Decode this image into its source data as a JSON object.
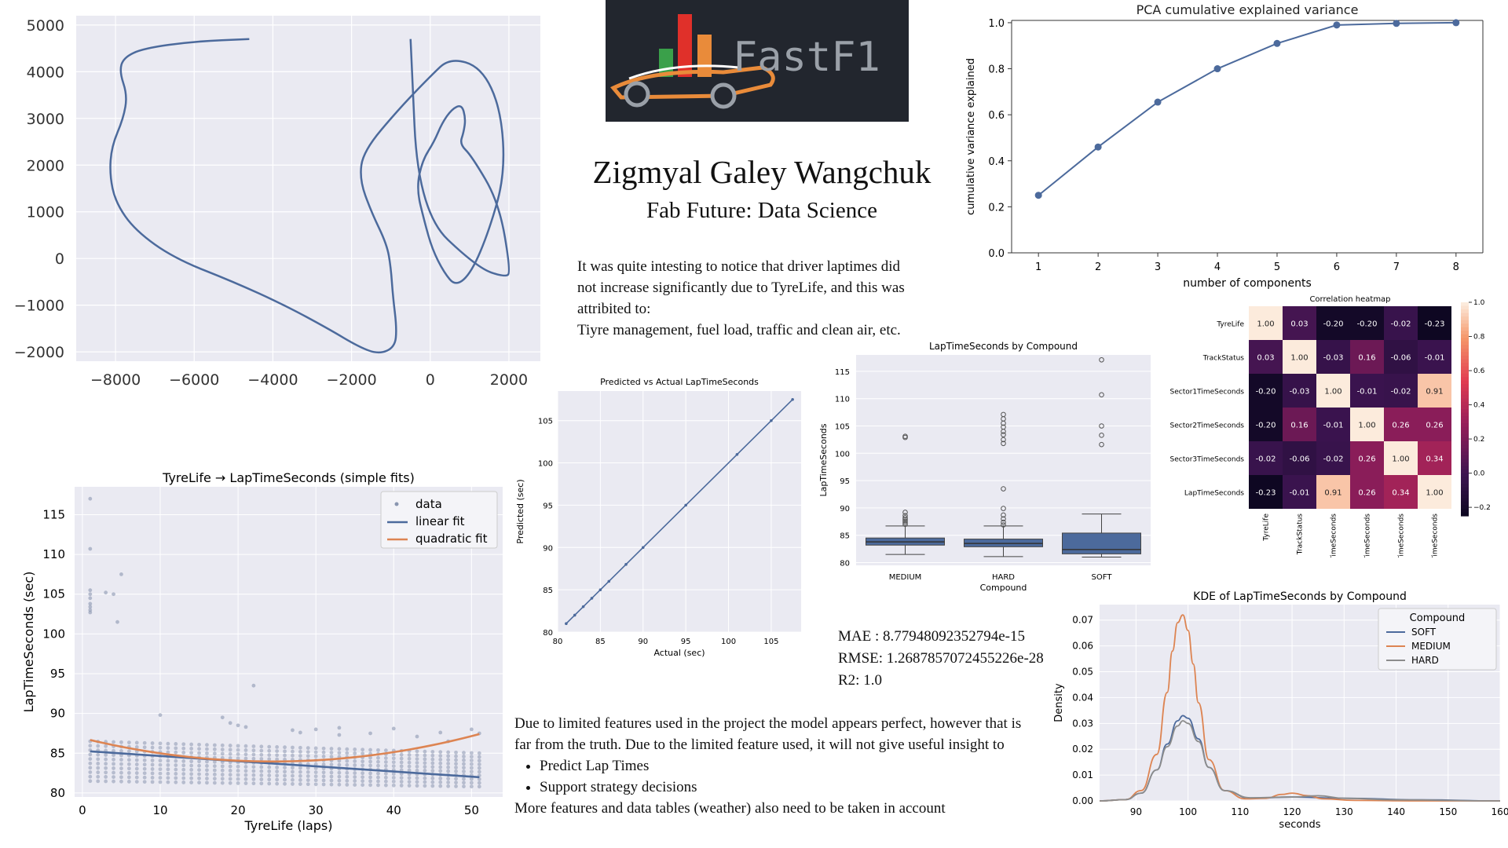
{
  "author": {
    "name": "Zigmyal Galey Wangchuk",
    "subtitle": "Fab Future: Data Science"
  },
  "logo": {
    "text": "FastF1"
  },
  "note": {
    "lines": [
      "It was quite intesting to notice that driver laptimes did",
      "not increase significantly due to TyreLife, and this was",
      "attribited to:",
      "Tiyre management, fuel load, traffic and clean air, etc."
    ]
  },
  "metrics": {
    "mae": "MAE : 8.77948092352794e-15",
    "rmse": "RMSE: 1.2687857072455226e-28",
    "r2": "R2: 1.0"
  },
  "conclusion": {
    "intro": "Due to limited features used in the project the model appears perfect, however that is far from the truth. Due to the limited feature used, it will not give useful insight to",
    "bullets": [
      "Predict Lap Times",
      "Support strategy decisions"
    ],
    "outro": "More features and data tables (weather) also need to be taken in account"
  },
  "colors": {
    "blue": "#4c6a9c",
    "orange": "#dd8452",
    "gray": "#8c8c8c",
    "panel_bg": "#eaeaf2"
  },
  "chart_data": [
    {
      "id": "track",
      "type": "line",
      "title": "",
      "xticks": [
        "−8000",
        "−6000",
        "−4000",
        "−2000",
        "0",
        "2000"
      ],
      "yticks": [
        "5000",
        "4000",
        "3000",
        "2000",
        "1000",
        "0",
        "−1000",
        "−2000"
      ],
      "xlim": [
        -9000,
        2800
      ],
      "ylim": [
        -2200,
        5200
      ],
      "x": [
        -4600,
        -6000,
        -7300,
        -7800,
        -7900,
        -7700,
        -7800,
        -8100,
        -8150,
        -8000,
        -7500,
        -6500,
        -5000,
        -3700,
        -2600,
        -1800,
        -1300,
        -900,
        -850,
        -950,
        -1000,
        -1100,
        -1500,
        -1800,
        -1700,
        -800,
        0,
        500,
        1300,
        1800,
        1900,
        1500,
        1050,
        650,
        350,
        50,
        -150,
        -350,
        -200,
        100,
        300,
        550,
        800,
        900,
        850,
        750,
        1050,
        1750,
        2050,
        1900,
        1200,
        -300,
        -500
      ],
      "y": [
        4700,
        4650,
        4500,
        4300,
        4000,
        3500,
        3000,
        2400,
        1800,
        1200,
        600,
        0,
        -500,
        -1000,
        -1500,
        -1900,
        -2050,
        -1900,
        -1500,
        -800,
        -200,
        300,
        1000,
        1700,
        2300,
        3200,
        3900,
        4300,
        4100,
        3200,
        1800,
        600,
        -300,
        -600,
        -300,
        200,
        800,
        1500,
        2100,
        2500,
        2900,
        3200,
        3300,
        3000,
        2700,
        2450,
        2200,
        1200,
        -300,
        -400,
        -200,
        1000,
        4700
      ]
    },
    {
      "id": "pca",
      "type": "line",
      "title": "PCA cumulative explained variance",
      "xlabel": "number of components",
      "ylabel": "cumulative variance explained",
      "x": [
        1,
        2,
        3,
        4,
        5,
        6,
        7,
        8
      ],
      "y": [
        0.25,
        0.46,
        0.655,
        0.8,
        0.91,
        0.99,
        0.997,
        1.0
      ],
      "xlim": [
        0.55,
        8.45
      ],
      "ylim": [
        0,
        1.01
      ],
      "xticks": [
        "1",
        "2",
        "3",
        "4",
        "5",
        "6",
        "7",
        "8"
      ],
      "yticks": [
        "0.0",
        "0.2",
        "0.4",
        "0.6",
        "0.8",
        "1.0"
      ]
    },
    {
      "id": "heatmap",
      "type": "heatmap",
      "title": "Correlation heatmap",
      "labels": [
        "TyreLife",
        "TrackStatus",
        "Sector1TimeSeconds",
        "Sector2TimeSeconds",
        "Sector3TimeSeconds",
        "LapTimeSeconds"
      ],
      "matrix": [
        [
          1.0,
          0.03,
          -0.2,
          -0.2,
          -0.02,
          -0.23
        ],
        [
          0.03,
          1.0,
          -0.03,
          0.16,
          -0.06,
          -0.01
        ],
        [
          -0.2,
          -0.03,
          1.0,
          -0.01,
          -0.02,
          0.91
        ],
        [
          -0.2,
          0.16,
          -0.01,
          1.0,
          0.26,
          0.26
        ],
        [
          -0.02,
          -0.06,
          -0.02,
          0.26,
          1.0,
          0.34
        ],
        [
          -0.23,
          -0.01,
          0.91,
          0.26,
          0.34,
          1.0
        ]
      ],
      "cells": [
        [
          "1.00",
          "0.03",
          "-0.20",
          "-0.20",
          "-0.02",
          "-0.23"
        ],
        [
          "0.03",
          "1.00",
          "-0.03",
          "0.16",
          "-0.06",
          "-0.01"
        ],
        [
          "-0.20",
          "-0.03",
          "1.00",
          "-0.01",
          "-0.02",
          "0.91"
        ],
        [
          "-0.20",
          "0.16",
          "-0.01",
          "1.00",
          "0.26",
          "0.26"
        ],
        [
          "-0.02",
          "-0.06",
          "-0.02",
          "0.26",
          "1.00",
          "0.34"
        ],
        [
          "-0.23",
          "-0.01",
          "0.91",
          "0.26",
          "0.34",
          "1.00"
        ]
      ],
      "colorbar_ticks": [
        "1.0",
        "0.8",
        "0.6",
        "0.4",
        "0.2",
        "0.0",
        "−0.2"
      ],
      "vmin": -0.25,
      "vmax": 1.0
    },
    {
      "id": "pred",
      "type": "scatter",
      "title": "Predicted vs Actual LapTimeSeconds",
      "xlabel": "Actual (sec)",
      "ylabel": "Predicted (sec)",
      "xlim": [
        80,
        108.5
      ],
      "ylim": [
        80,
        108.5
      ],
      "x": [
        81,
        82,
        83,
        84,
        85,
        86,
        88,
        90,
        95,
        101,
        105,
        107.5
      ],
      "y": [
        81,
        82,
        83,
        84,
        85,
        86,
        88,
        90,
        95,
        101,
        105,
        107.5
      ],
      "xticks": [
        "80",
        "85",
        "90",
        "95",
        "100",
        "105"
      ],
      "yticks": [
        "80",
        "85",
        "90",
        "95",
        "100",
        "105"
      ]
    },
    {
      "id": "box",
      "type": "bar",
      "title": "LapTimeSeconds by Compound",
      "xlabel": "Compound",
      "ylabel": "LapTimeSeconds",
      "categories": [
        "MEDIUM",
        "HARD",
        "SOFT"
      ],
      "ylim": [
        79.5,
        118
      ],
      "yticks": [
        "80",
        "85",
        "90",
        "95",
        "100",
        "105",
        "110",
        "115"
      ],
      "boxes": [
        {
          "whislo": 81.5,
          "q1": 83.2,
          "med": 83.8,
          "q3": 84.5,
          "whishi": 86.7,
          "fliers": [
            87.0,
            87.3,
            87.6,
            87.9,
            88.2,
            88.6,
            89.2,
            102.9,
            103.1
          ]
        },
        {
          "whislo": 81.1,
          "q1": 82.9,
          "med": 83.5,
          "q3": 84.3,
          "whishi": 86.7,
          "fliers": [
            86.9,
            87.4,
            88.0,
            88.7,
            89.9,
            93.5,
            101.8,
            102.5,
            103.4,
            104.0,
            104.8,
            105.5,
            106.3,
            107.1
          ]
        },
        {
          "whislo": 81.0,
          "q1": 81.6,
          "med": 82.4,
          "q3": 85.4,
          "whishi": 88.9,
          "fliers": [
            101.6,
            103.3,
            105.0,
            110.7,
            117.1
          ]
        }
      ]
    },
    {
      "id": "kde",
      "type": "line",
      "title": "KDE of LapTimeSeconds by Compound",
      "xlabel": "seconds",
      "ylabel": "Density",
      "legend_title": "Compound",
      "xlim": [
        83,
        160
      ],
      "ylim": [
        0,
        0.076
      ],
      "xticks": [
        "90",
        "100",
        "110",
        "120",
        "130",
        "140",
        "150",
        "160"
      ],
      "yticks": [
        "0.00",
        "0.01",
        "0.02",
        "0.03",
        "0.04",
        "0.05",
        "0.06",
        "0.07"
      ],
      "series": [
        {
          "name": "SOFT",
          "x": [
            83,
            88,
            91,
            94,
            96,
            98,
            99,
            100,
            102,
            104,
            107,
            112,
            120,
            130,
            145,
            160
          ],
          "y": [
            0,
            0.0005,
            0.003,
            0.012,
            0.022,
            0.031,
            0.033,
            0.032,
            0.024,
            0.013,
            0.004,
            0.001,
            0.0015,
            0.001,
            0.0004,
            0
          ]
        },
        {
          "name": "MEDIUM",
          "x": [
            83,
            88,
            91,
            94,
            96,
            97,
            98,
            99,
            100,
            101,
            102,
            104,
            107,
            111,
            115,
            118,
            120,
            123,
            126,
            132,
            145,
            160
          ],
          "y": [
            0,
            0.0005,
            0.004,
            0.018,
            0.042,
            0.058,
            0.069,
            0.072,
            0.066,
            0.053,
            0.038,
            0.016,
            0.004,
            0.0008,
            0.001,
            0.0025,
            0.003,
            0.002,
            0.0008,
            0.0002,
            0,
            0
          ]
        },
        {
          "name": "HARD",
          "x": [
            83,
            88,
            91,
            94,
            96,
            98,
            99,
            100,
            102,
            104,
            107,
            112,
            120,
            125,
            130,
            140,
            160
          ],
          "y": [
            0,
            0.0005,
            0.003,
            0.012,
            0.021,
            0.029,
            0.031,
            0.03,
            0.023,
            0.013,
            0.004,
            0.0012,
            0.0015,
            0.002,
            0.001,
            0.0004,
            0
          ]
        }
      ]
    },
    {
      "id": "tyre",
      "type": "scatter",
      "title": "TyreLife → LapTimeSeconds (simple fits)",
      "xlabel": "TyreLife (laps)",
      "ylabel": "LapTimeSeconds (sec)",
      "xlim": [
        -1,
        54
      ],
      "ylim": [
        79.5,
        118.5
      ],
      "xticks": [
        "0",
        "10",
        "20",
        "30",
        "40",
        "50"
      ],
      "yticks": [
        "80",
        "85",
        "90",
        "95",
        "100",
        "105",
        "110",
        "115"
      ],
      "legend": [
        "data",
        "linear fit",
        "quadratic fit"
      ],
      "outliers": [
        [
          1,
          117
        ],
        [
          1,
          110.7
        ],
        [
          1,
          105.5
        ],
        [
          1,
          105
        ],
        [
          1,
          104.5
        ],
        [
          1,
          103.8
        ],
        [
          1,
          103.4
        ],
        [
          1,
          103
        ],
        [
          1,
          102.7
        ],
        [
          3,
          105.2
        ],
        [
          4,
          105
        ],
        [
          4.5,
          101.5
        ],
        [
          5,
          107.5
        ],
        [
          10,
          89.8
        ],
        [
          18,
          89.5
        ],
        [
          19,
          88.8
        ],
        [
          20,
          88.5
        ],
        [
          21,
          88.3
        ],
        [
          22,
          93.5
        ],
        [
          27,
          87.9
        ],
        [
          28,
          87.6
        ],
        [
          30,
          88.0
        ],
        [
          33,
          88.2
        ],
        [
          33,
          87.3
        ],
        [
          37,
          87.5
        ],
        [
          40,
          88.1
        ],
        [
          43,
          87.1
        ],
        [
          46,
          87.6
        ],
        [
          47,
          86.5
        ],
        [
          50,
          88.0
        ],
        [
          51,
          87.5
        ]
      ],
      "cloud": {
        "x0": 1,
        "x1": 51,
        "band_lo": [
          81.5,
          80.8
        ],
        "band_hi": [
          86.5,
          85.0
        ]
      },
      "linear": {
        "a": 85.3,
        "b": -0.065
      },
      "quadratic": {
        "a": 86.9,
        "b": -0.24,
        "c": 0.0049
      }
    }
  ]
}
